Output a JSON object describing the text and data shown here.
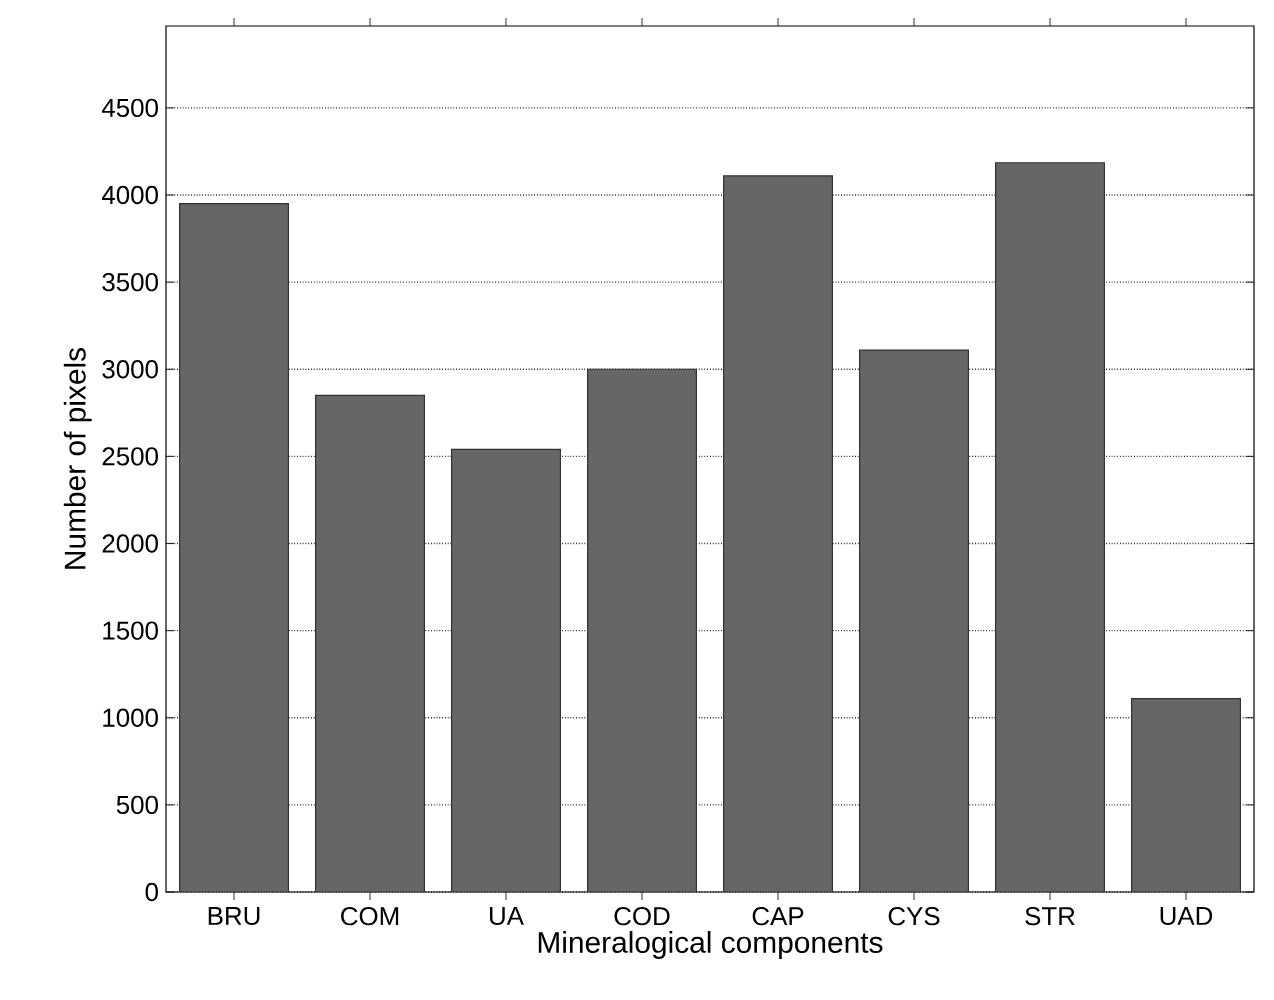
{
  "chart_data": {
    "type": "bar",
    "xlabel": "Mineralogical components",
    "ylabel": "Number of pixels",
    "categories": [
      "BRU",
      "COM",
      "UA",
      "COD",
      "CAP",
      "CYS",
      "STR",
      "UAD"
    ],
    "values": [
      3950,
      2850,
      2540,
      3000,
      4110,
      3110,
      4185,
      1110
    ],
    "color": "#666666",
    "ylim": [
      0,
      4970
    ],
    "yticks": [
      0,
      500,
      1000,
      1500,
      2000,
      2500,
      3000,
      3500,
      4000,
      4500
    ],
    "grid": "y"
  }
}
